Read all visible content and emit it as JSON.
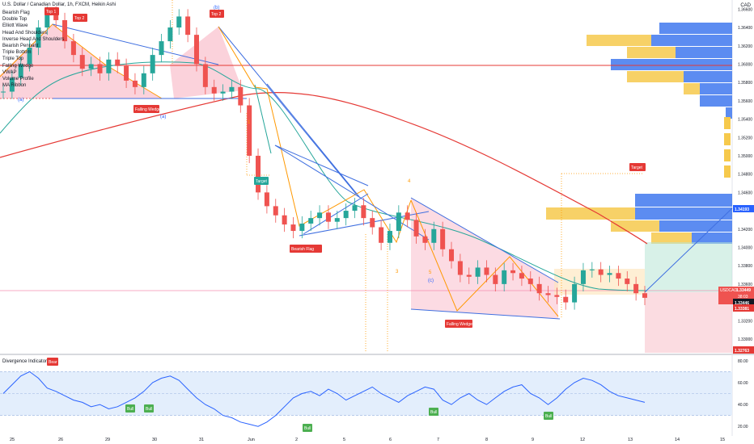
{
  "header": {
    "title": "U.S. Dollar / Canadian Dollar, 1h, FXCM, Heikin Ashi",
    "currency": "CAD"
  },
  "patterns": [
    "Bearish Flag",
    "Double Top",
    "Elliott Wave",
    "Head And Shoulders",
    "Inverse Head And Shoulders",
    "Bearish Pennant",
    "Triple Bottom",
    "Triple Top",
    "Falling Wedge",
    "VWAP",
    "Volume Profile",
    "MA Ribbon"
  ],
  "labels": {
    "top1": "Top 1",
    "top2a": "Top 2",
    "b_label": "(b)",
    "top2b": "Top 2",
    "a_upper": "(a)",
    "a_lower": "(a)",
    "falling_wedge_1": "Falling Wedge",
    "falling_wedge_2": "Falling Wedge",
    "bearish_flag": "Bearish Flag",
    "target_1": "Target",
    "target_2": "Target",
    "wave_1": "1",
    "wave_3": "3",
    "wave_4": "4",
    "wave_5": "5",
    "c_label": "(c)",
    "bear": "Bear",
    "bull": "Bull"
  },
  "price_tags": {
    "upper": "1.34193",
    "symbol": "USDCAD",
    "current": "1.33449",
    "countdown": "38:03",
    "mid": "1.33446",
    "low1": "1.33381",
    "low2": "1.32763"
  },
  "oscillator": {
    "title": "Divergence Indicator"
  },
  "chart_data": {
    "type": "line",
    "price_axis": {
      "ticks": [
        "1.36600",
        "1.36400",
        "1.36200",
        "1.36000",
        "1.35800",
        "1.35600",
        "1.35400",
        "1.35200",
        "1.35000",
        "1.34800",
        "1.34600",
        "1.34400",
        "1.34200",
        "1.34000",
        "1.33800",
        "1.33600",
        "1.33400",
        "1.33200",
        "1.33000"
      ],
      "ylim": [
        1.3285,
        1.367
      ]
    },
    "time_axis": [
      "25",
      "26",
      "29",
      "30",
      "31",
      "Jun",
      "2",
      "5",
      "6",
      "7",
      "8",
      "9",
      "12",
      "13",
      "14",
      "15"
    ],
    "oscillator_axis": {
      "ticks": [
        "80.00",
        "60.00",
        "40.00",
        "20.00"
      ],
      "ylim": [
        15,
        85
      ]
    },
    "series": [
      {
        "values": [
          1.357,
          1.3585,
          1.36,
          1.3618,
          1.364,
          1.3655,
          1.3648,
          1.3625,
          1.361,
          1.3595,
          1.36,
          1.359,
          1.3605,
          1.3598,
          1.3582,
          1.3575,
          1.359,
          1.361,
          1.3625,
          1.364,
          1.3652,
          1.3632,
          1.36,
          1.3575,
          1.3568,
          1.357,
          1.3575,
          1.3555,
          1.35,
          1.346,
          1.3445,
          1.3435,
          1.3425,
          1.3418,
          1.3426,
          1.3432,
          1.3438,
          1.3428,
          1.3432,
          1.344,
          1.3446,
          1.3432,
          1.3422,
          1.3405,
          1.3418,
          1.3438,
          1.343,
          1.3412,
          1.3405,
          1.342,
          1.3398,
          1.3385,
          1.337,
          1.3368,
          1.3378,
          1.337,
          1.336,
          1.3375,
          1.3372,
          1.3366,
          1.336,
          1.335,
          1.3348,
          1.3346,
          1.334,
          1.336,
          1.3375,
          1.3376,
          1.337,
          1.3372,
          1.3366,
          1.336,
          1.335,
          1.3345
        ]
      },
      {
        "values": [
          50,
          58,
          66,
          70,
          64,
          55,
          52,
          48,
          44,
          42,
          38,
          40,
          36,
          38,
          42,
          46,
          52,
          60,
          64,
          66,
          62,
          54,
          46,
          40,
          36,
          30,
          28,
          24,
          22,
          20,
          24,
          30,
          38,
          46,
          50,
          52,
          48,
          54,
          50,
          44,
          48,
          52,
          56,
          50,
          46,
          42,
          48,
          52,
          56,
          54,
          44,
          40,
          46,
          50,
          44,
          40,
          46,
          52,
          56,
          58,
          50,
          46,
          40,
          46,
          54,
          60,
          64,
          62,
          58,
          52,
          48,
          46,
          44,
          42
        ]
      }
    ]
  }
}
